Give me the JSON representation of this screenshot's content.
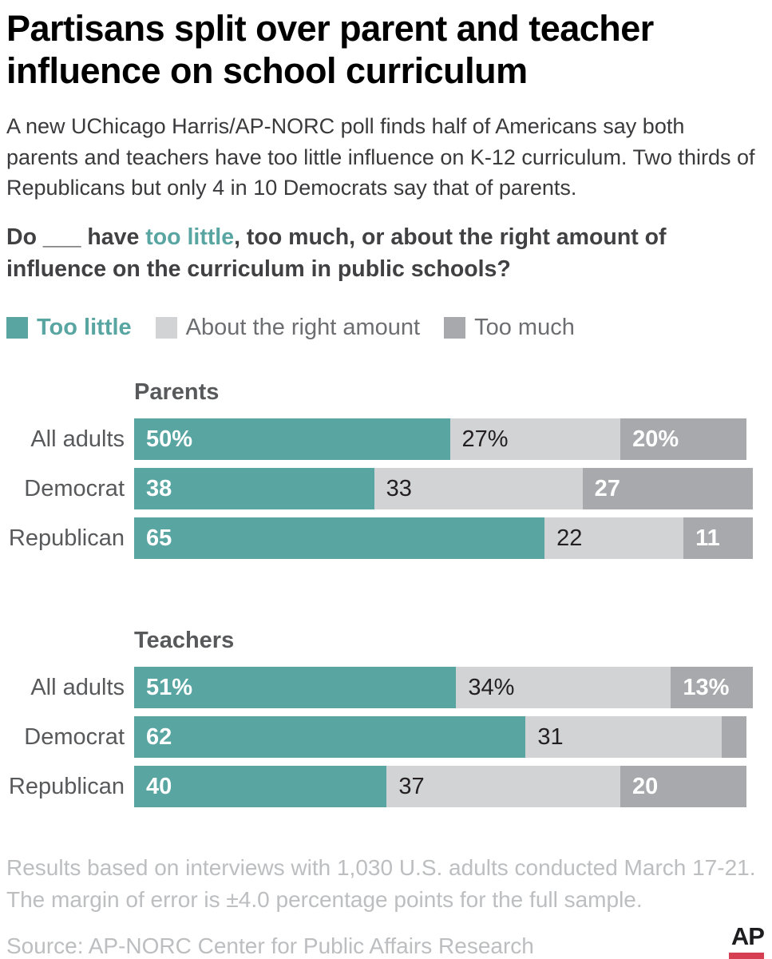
{
  "title": "Partisans split over parent and teacher influence on school curriculum",
  "subtitle": "A new UChicago Harris/AP-NORC poll finds half of Americans say both parents and teachers have too little influence on K-12 curriculum. Two thirds of Republicans but only 4 in 10 Democrats say that of parents.",
  "question": {
    "part1": "Do ___ have ",
    "highlight": "too little",
    "part2": ", too much, or about the right amount of influence on the curriculum in public schools?"
  },
  "colors": {
    "too_little": "#58a5a2",
    "about_right": "#d1d3d4",
    "too_much": "#a7a9ac",
    "highlight_text": "#58a5a2",
    "ap_red": "#d63e52",
    "series": [
      "#58a5a2",
      "#d1d3d4",
      "#a7a9ac"
    ]
  },
  "legend": {
    "items": [
      {
        "label": "Too little",
        "color": "#58a5a2"
      },
      {
        "label": "About the right amount",
        "color": "#d1d3d4"
      },
      {
        "label": "Too much",
        "color": "#a7a9ac"
      }
    ]
  },
  "chart_data": {
    "type": "bar",
    "stacked": true,
    "orientation": "horizontal",
    "xlim": [
      0,
      100
    ],
    "series_names": [
      "Too little",
      "About the right amount",
      "Too much"
    ],
    "groups": [
      {
        "title": "Parents",
        "rows": [
          {
            "category": "All adults",
            "values": [
              50,
              27,
              20
            ],
            "labels": [
              "50%",
              "27%",
              "20%"
            ]
          },
          {
            "category": "Democrat",
            "values": [
              38,
              33,
              27
            ],
            "labels": [
              "38",
              "33",
              "27"
            ]
          },
          {
            "category": "Republican",
            "values": [
              65,
              22,
              11
            ],
            "labels": [
              "65",
              "22",
              "11"
            ]
          }
        ]
      },
      {
        "title": "Teachers",
        "rows": [
          {
            "category": "All adults",
            "values": [
              51,
              34,
              13
            ],
            "labels": [
              "51%",
              "34%",
              "13%"
            ]
          },
          {
            "category": "Democrat",
            "values": [
              62,
              31,
              4
            ],
            "labels": [
              "62",
              "31",
              ""
            ]
          },
          {
            "category": "Republican",
            "values": [
              40,
              37,
              20
            ],
            "labels": [
              "40",
              "37",
              "20"
            ]
          }
        ]
      }
    ]
  },
  "footnote": "Results based on interviews with 1,030 U.S. adults conducted March 17-21. The margin of error is ±4.0 percentage points for the full sample.",
  "source": "Source: AP-NORC Center for Public Affairs Research",
  "ap_logo_text": "AP"
}
